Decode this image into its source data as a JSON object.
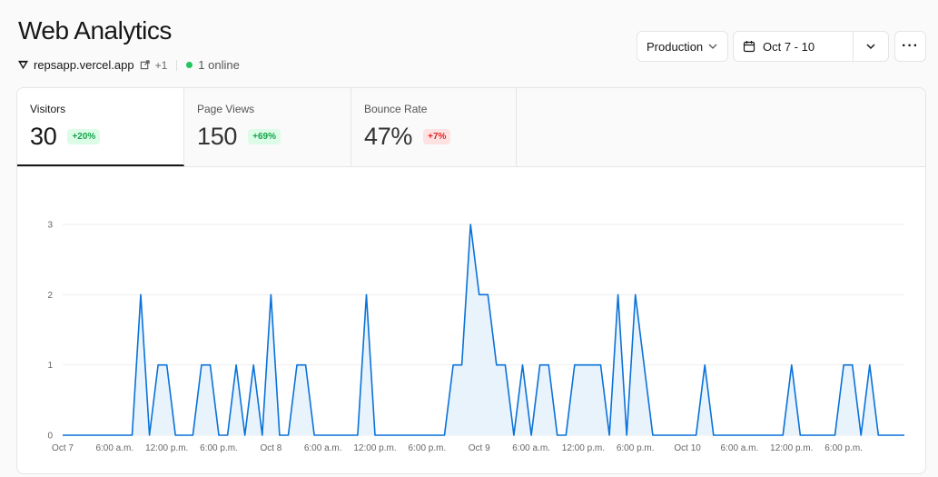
{
  "header": {
    "title": "Web Analytics",
    "project_url": "repsapp.vercel.app",
    "extra_domains": "+1",
    "online_status": "1 online"
  },
  "toolbar": {
    "environment": "Production",
    "date_range": "Oct 7 - 10",
    "more_label": "···"
  },
  "metrics": [
    {
      "label": "Visitors",
      "value": "30",
      "change": "+20%",
      "trend": "up"
    },
    {
      "label": "Page Views",
      "value": "150",
      "change": "+69%",
      "trend": "up"
    },
    {
      "label": "Bounce Rate",
      "value": "47%",
      "change": "+7%",
      "trend": "down"
    }
  ],
  "colors": {
    "accent": "#0a72d8",
    "fill": "#e8f3fc",
    "positive": "#16a34a",
    "negative": "#dc2626",
    "online": "#22c55e"
  },
  "chart_data": {
    "type": "area",
    "series_name": "",
    "ylim": [
      0,
      3
    ],
    "y_ticks": [
      "0",
      "1",
      "2",
      "3"
    ],
    "x_ticks": [
      "Oct 7",
      "6:00 a.m.",
      "12:00 p.m.",
      "6:00 p.m.",
      "Oct 8",
      "6:00 a.m.",
      "12:00 p.m.",
      "6:00 p.m.",
      "Oct 9",
      "6:00 a.m.",
      "12:00 p.m.",
      "6:00 p.m.",
      "Oct 10",
      "6:00 a.m.",
      "12:00 p.m.",
      "6:00 p.m."
    ],
    "x_tick_hours": [
      0,
      6,
      12,
      18,
      24,
      30,
      36,
      42,
      48,
      54,
      60,
      66,
      72,
      78,
      84,
      90
    ],
    "values": [
      0,
      0,
      0,
      0,
      0,
      0,
      0,
      0,
      0,
      2,
      0,
      1,
      1,
      0,
      0,
      0,
      1,
      1,
      0,
      0,
      1,
      0,
      1,
      0,
      2,
      0,
      0,
      1,
      1,
      0,
      0,
      0,
      0,
      0,
      0,
      2,
      0,
      0,
      0,
      0,
      0,
      0,
      0,
      0,
      0,
      1,
      1,
      3,
      2,
      2,
      1,
      1,
      0,
      1,
      0,
      1,
      1,
      0,
      0,
      1,
      1,
      1,
      1,
      0,
      2,
      0,
      2,
      1,
      0,
      0,
      0,
      0,
      0,
      0,
      1,
      0,
      0,
      0,
      0,
      0,
      0,
      0,
      0,
      0,
      1,
      0,
      0,
      0,
      0,
      0,
      1,
      1,
      0,
      1,
      0,
      0,
      0,
      0
    ]
  }
}
